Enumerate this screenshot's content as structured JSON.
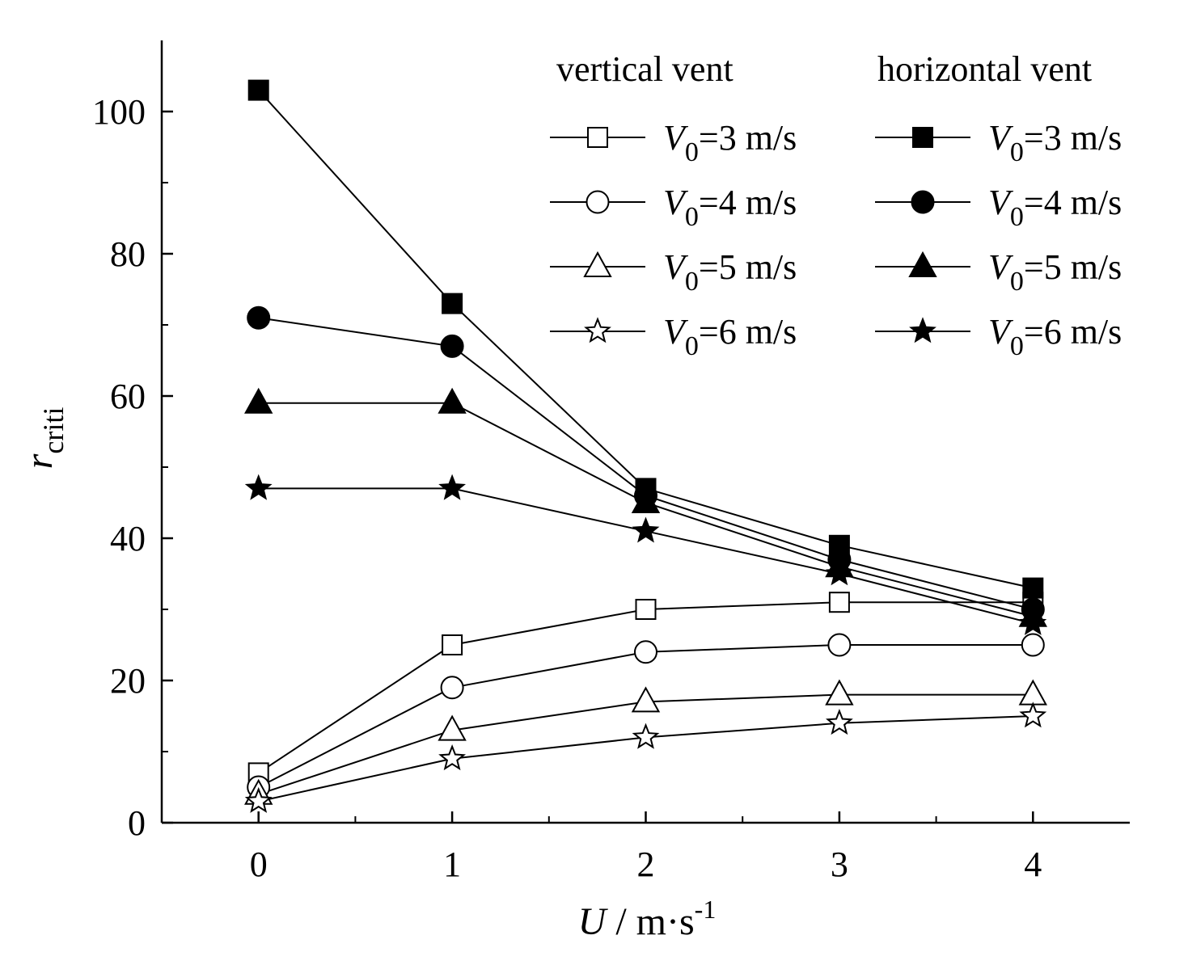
{
  "chart_data": {
    "type": "line",
    "xlabel": {
      "var": "U",
      "unit": " / m·s",
      "sup": "-1"
    },
    "ylabel": {
      "var": "r",
      "sub": "criti"
    },
    "xlim": [
      -0.5,
      4.5
    ],
    "ylim": [
      0,
      110
    ],
    "xticks": [
      0,
      1,
      2,
      3,
      4
    ],
    "xtick_labels": [
      "0",
      "1",
      "2",
      "3",
      "4"
    ],
    "yticks": [
      0,
      20,
      40,
      60,
      80,
      100
    ],
    "ytick_labels": [
      "0",
      "20",
      "40",
      "60",
      "80",
      "100"
    ],
    "x": [
      0,
      1,
      2,
      3,
      4
    ],
    "legend": {
      "position": "top-right",
      "group_titles": [
        "vertical vent",
        "horizontal vent"
      ]
    },
    "series": [
      {
        "name": "V0=3 m/s",
        "label_var": "V",
        "label_sub": "0",
        "label_rest": "=3 m/s",
        "group": "vertical vent",
        "marker": "square",
        "fill": "open",
        "values": [
          7,
          25,
          30,
          31,
          31
        ]
      },
      {
        "name": "V0=4 m/s",
        "label_var": "V",
        "label_sub": "0",
        "label_rest": "=4 m/s",
        "group": "vertical vent",
        "marker": "circle",
        "fill": "open",
        "values": [
          5,
          19,
          24,
          25,
          25
        ]
      },
      {
        "name": "V0=5 m/s",
        "label_var": "V",
        "label_sub": "0",
        "label_rest": "=5 m/s",
        "group": "vertical vent",
        "marker": "triangle",
        "fill": "open",
        "values": [
          4,
          13,
          17,
          18,
          18
        ]
      },
      {
        "name": "V0=6 m/s",
        "label_var": "V",
        "label_sub": "0",
        "label_rest": "=6 m/s",
        "group": "vertical vent",
        "marker": "star",
        "fill": "open",
        "values": [
          3,
          9,
          12,
          14,
          15
        ]
      },
      {
        "name": "V0=3 m/s",
        "label_var": "V",
        "label_sub": "0",
        "label_rest": "=3 m/s",
        "group": "horizontal vent",
        "marker": "square",
        "fill": "filled",
        "values": [
          103,
          73,
          47,
          39,
          33
        ]
      },
      {
        "name": "V0=4 m/s",
        "label_var": "V",
        "label_sub": "0",
        "label_rest": "=4 m/s",
        "group": "horizontal vent",
        "marker": "circle",
        "fill": "filled",
        "values": [
          71,
          67,
          46,
          37,
          30
        ]
      },
      {
        "name": "V0=5 m/s",
        "label_var": "V",
        "label_sub": "0",
        "label_rest": "=5 m/s",
        "group": "horizontal vent",
        "marker": "triangle",
        "fill": "filled",
        "values": [
          59,
          59,
          45,
          36,
          29
        ]
      },
      {
        "name": "V0=6 m/s",
        "label_var": "V",
        "label_sub": "0",
        "label_rest": "=6 m/s",
        "group": "horizontal vent",
        "marker": "star",
        "fill": "filled",
        "values": [
          47,
          47,
          41,
          35,
          28
        ]
      }
    ],
    "colors": {
      "line": "#000000",
      "open_fill": "#ffffff",
      "filled_fill": "#000000"
    }
  }
}
